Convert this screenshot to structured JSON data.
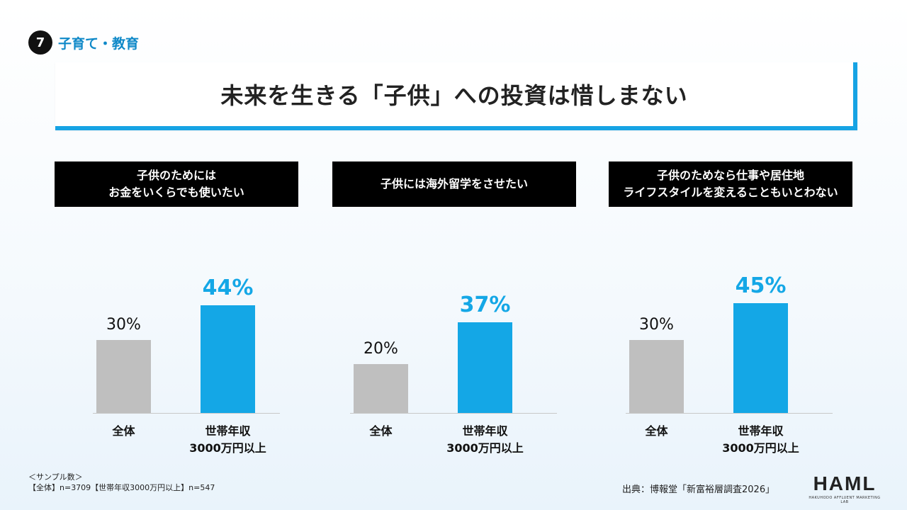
{
  "section": {
    "number": "7",
    "label": "子育て・教育"
  },
  "title": "未来を生きる「子供」への投資は惜しまない",
  "chart_data": [
    {
      "type": "bar",
      "title": "子供のためには\nお金をいくらでも使いたい",
      "categories": [
        "全体",
        "世帯年収\n3000万円以上"
      ],
      "values": [
        30,
        44
      ],
      "labels": [
        "30%",
        "44%"
      ],
      "ylim": [
        0,
        50
      ],
      "colors": [
        "#bfbfbf",
        "#14a7e6"
      ]
    },
    {
      "type": "bar",
      "title": "子供には海外留学をさせたい",
      "categories": [
        "全体",
        "世帯年収\n3000万円以上"
      ],
      "values": [
        20,
        37
      ],
      "labels": [
        "20%",
        "37%"
      ],
      "ylim": [
        0,
        50
      ],
      "colors": [
        "#bfbfbf",
        "#14a7e6"
      ]
    },
    {
      "type": "bar",
      "title": "子供のためなら仕事や居住地\nライフスタイルを変えることもいとわない",
      "categories": [
        "全体",
        "世帯年収\n3000万円以上"
      ],
      "values": [
        30,
        45
      ],
      "labels": [
        "30%",
        "45%"
      ],
      "ylim": [
        0,
        50
      ],
      "colors": [
        "#bfbfbf",
        "#14a7e6"
      ]
    }
  ],
  "footer": {
    "sample_heading": "＜サンプル数＞",
    "sample_counts": "【全体】n=3709【世帯年収3000万円以上】n=547",
    "source": "出典：博報堂「新富裕層調査2026」",
    "logo_main": "HAML",
    "logo_sub": "HAKUHODO AFFLUENT MARKETING LAB"
  }
}
